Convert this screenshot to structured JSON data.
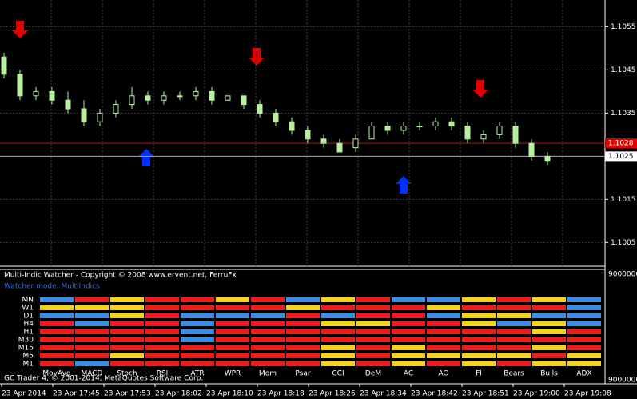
{
  "chart_data": {
    "type": "candlestick",
    "open": [
      1.1048,
      1.1044,
      1.1039,
      1.104,
      1.1038,
      1.1036,
      1.1033,
      1.1035,
      1.1037,
      1.1039,
      1.1038,
      1.1039,
      1.1039,
      1.104,
      1.1038,
      1.1039,
      1.1037,
      1.1035,
      1.1033,
      1.1031,
      1.1029,
      1.1028,
      1.1027,
      1.1029,
      1.1032,
      1.1031,
      1.1032,
      1.1032,
      1.1033,
      1.1032,
      1.1029,
      1.103,
      1.1032,
      1.1028,
      1.1025
    ],
    "high": [
      1.1049,
      1.1045,
      1.1041,
      1.1041,
      1.104,
      1.1038,
      1.1036,
      1.1038,
      1.1041,
      1.104,
      1.104,
      1.104,
      1.1041,
      1.1041,
      1.1039,
      1.1039,
      1.1038,
      1.1036,
      1.1034,
      1.1032,
      1.103,
      1.1029,
      1.103,
      1.1033,
      1.1033,
      1.1033,
      1.1033,
      1.1034,
      1.1034,
      1.1033,
      1.1031,
      1.1033,
      1.1033,
      1.1029,
      1.1026
    ],
    "low": [
      1.1043,
      1.1038,
      1.1038,
      1.1037,
      1.1035,
      1.1032,
      1.1032,
      1.1034,
      1.1036,
      1.1037,
      1.1037,
      1.1038,
      1.1038,
      1.1037,
      1.1038,
      1.1036,
      1.1034,
      1.1032,
      1.103,
      1.1028,
      1.1027,
      1.1026,
      1.1026,
      1.1029,
      1.103,
      1.103,
      1.1031,
      1.1031,
      1.1031,
      1.1028,
      1.1028,
      1.1029,
      1.1027,
      1.1024,
      1.1023
    ],
    "close": [
      1.1044,
      1.1039,
      1.104,
      1.1038,
      1.1036,
      1.1033,
      1.1035,
      1.1037,
      1.1039,
      1.1038,
      1.1039,
      1.1039,
      1.104,
      1.1038,
      1.1039,
      1.1037,
      1.1035,
      1.1033,
      1.1031,
      1.1029,
      1.1028,
      1.1026,
      1.1029,
      1.1032,
      1.1031,
      1.1032,
      1.1032,
      1.1033,
      1.1032,
      1.1029,
      1.103,
      1.1032,
      1.1028,
      1.1025,
      1.1024
    ],
    "color": "#b8f0a0",
    "ylim": [
      1.09995,
      1.10612
    ],
    "yticks": [
      1.1055,
      1.1045,
      1.1035,
      1.1025,
      1.1015,
      1.1005
    ],
    "bid_line": 1.1028,
    "bid_color": "#e00000",
    "ask_line": 1.1025,
    "ask_color": "#9aa8d8",
    "grid": true,
    "time_labels": [
      "23 Apr 2014",
      "23 Apr 17:45",
      "23 Apr 17:53",
      "23 Apr 18:02",
      "23 Apr 18:10",
      "23 Apr 18:18",
      "23 Apr 18:26",
      "23 Apr 18:34",
      "23 Apr 18:42",
      "23 Apr 18:51",
      "23 Apr 19:00",
      "23 Apr 19:08"
    ]
  },
  "indicator_panel": {
    "title": "Multi-Indic Watcher - Copyright © 2008 www.ervent.net, FerruFx",
    "mode": "Watcher mode: MultiIndics",
    "scale_top": "9000000",
    "scale_bottom": "9000000",
    "rows": [
      "MN",
      "W1",
      "D1",
      "H4",
      "H1",
      "M30",
      "M15",
      "M5",
      "M1"
    ],
    "columns": [
      "MovAvg",
      "MACD",
      "Stoch",
      "RSI",
      "ATR",
      "WPR",
      "Mom",
      "Psar",
      "CCI",
      "DeM",
      "AC",
      "AO",
      "FI",
      "Bears",
      "Bulls",
      "ADX"
    ],
    "cells": [
      [
        "#3a8ee6",
        "#ee1c1c",
        "#f5d31c",
        "#ee1c1c",
        "#ee1c1c",
        "#f5d31c",
        "#ee1c1c",
        "#3a8ee6",
        "#f5d31c",
        "#ee1c1c",
        "#3a8ee6",
        "#3a8ee6",
        "#f5d31c",
        "#ee1c1c",
        "#f5d31c",
        "#3a8ee6"
      ],
      [
        "#f5d31c",
        "#f5d31c",
        "#f5d31c",
        "#ee1c1c",
        "#ee1c1c",
        "#ee1c1c",
        "#ee1c1c",
        "#f5d31c",
        "#ee1c1c",
        "#ee1c1c",
        "#ee1c1c",
        "#f5d31c",
        "#ee1c1c",
        "#ee1c1c",
        "#ee1c1c",
        "#3a8ee6"
      ],
      [
        "#3a8ee6",
        "#3a8ee6",
        "#f5d31c",
        "#ee1c1c",
        "#3a8ee6",
        "#3a8ee6",
        "#3a8ee6",
        "#ee1c1c",
        "#3a8ee6",
        "#ee1c1c",
        "#ee1c1c",
        "#3a8ee6",
        "#f5d31c",
        "#f5d31c",
        "#3a8ee6",
        "#3a8ee6"
      ],
      [
        "#ee1c1c",
        "#3a8ee6",
        "#ee1c1c",
        "#ee1c1c",
        "#3a8ee6",
        "#ee1c1c",
        "#ee1c1c",
        "#ee1c1c",
        "#f5d31c",
        "#f5d31c",
        "#ee1c1c",
        "#ee1c1c",
        "#f5d31c",
        "#3a8ee6",
        "#f5d31c",
        "#3a8ee6"
      ],
      [
        "#ee1c1c",
        "#ee1c1c",
        "#ee1c1c",
        "#ee1c1c",
        "#3a8ee6",
        "#ee1c1c",
        "#ee1c1c",
        "#ee1c1c",
        "#ee1c1c",
        "#ee1c1c",
        "#ee1c1c",
        "#ee1c1c",
        "#ee1c1c",
        "#ee1c1c",
        "#f5d31c",
        "#ee1c1c"
      ],
      [
        "#ee1c1c",
        "#ee1c1c",
        "#ee1c1c",
        "#ee1c1c",
        "#3a8ee6",
        "#ee1c1c",
        "#ee1c1c",
        "#ee1c1c",
        "#ee1c1c",
        "#ee1c1c",
        "#ee1c1c",
        "#ee1c1c",
        "#ee1c1c",
        "#ee1c1c",
        "#ee1c1c",
        "#ee1c1c"
      ],
      [
        "#ee1c1c",
        "#ee1c1c",
        "#ee1c1c",
        "#ee1c1c",
        "#ee1c1c",
        "#ee1c1c",
        "#ee1c1c",
        "#ee1c1c",
        "#f5d31c",
        "#ee1c1c",
        "#f5d31c",
        "#ee1c1c",
        "#ee1c1c",
        "#ee1c1c",
        "#f5d31c",
        "#ee1c1c"
      ],
      [
        "#ee1c1c",
        "#ee1c1c",
        "#f5d31c",
        "#ee1c1c",
        "#ee1c1c",
        "#ee1c1c",
        "#ee1c1c",
        "#ee1c1c",
        "#f5d31c",
        "#ee1c1c",
        "#f5d31c",
        "#f5d31c",
        "#f5d31c",
        "#f5d31c",
        "#ee1c1c",
        "#f5d31c"
      ],
      [
        "#ee1c1c",
        "#3a8ee6",
        "#ee1c1c",
        "#ee1c1c",
        "#ee1c1c",
        "#ee1c1c",
        "#ee1c1c",
        "#ee1c1c",
        "#f5d31c",
        "#ee1c1c",
        "#f5d31c",
        "#ee1c1c",
        "#f5d31c",
        "#ee1c1c",
        "#f5d31c",
        "#f5d31c"
      ]
    ]
  },
  "footer": "GC Trader 4, © 2001-2014, MetaQuotes Software Corp."
}
